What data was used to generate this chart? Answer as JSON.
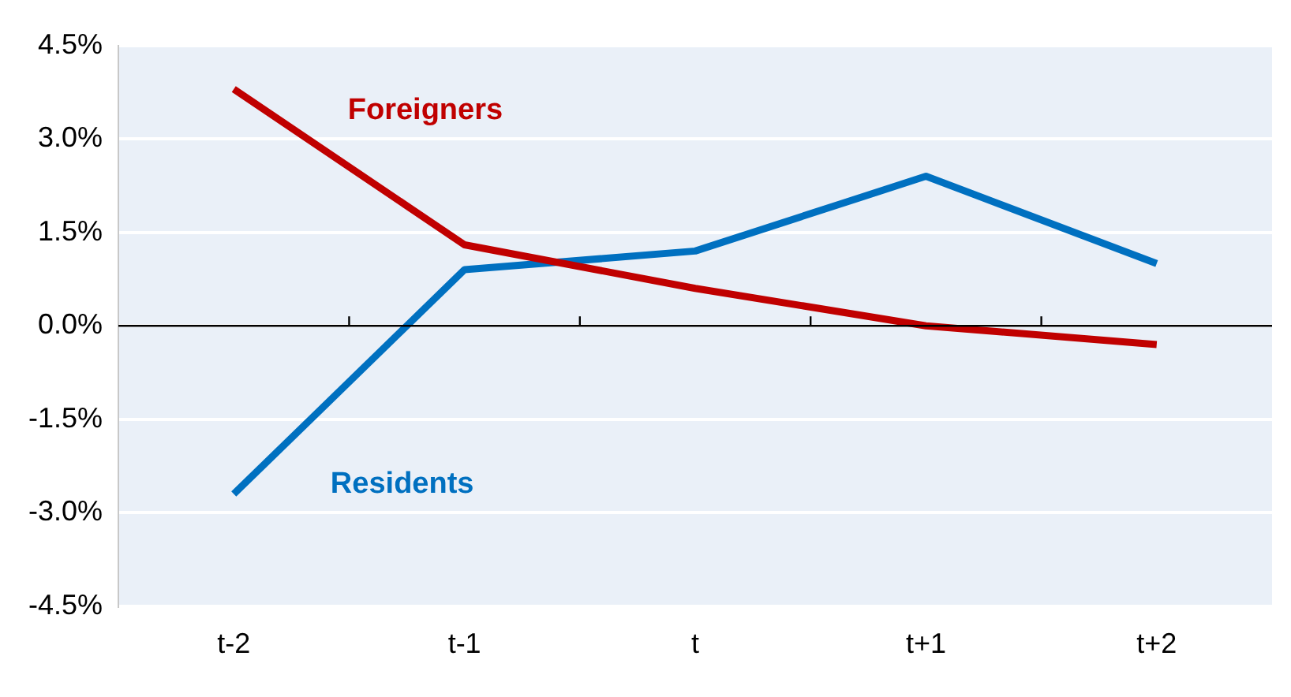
{
  "chart_data": {
    "type": "line",
    "categories": [
      "t-2",
      "t-1",
      "t",
      "t+1",
      "t+2"
    ],
    "series": [
      {
        "name": "Foreigners",
        "color": "#c00000",
        "values": [
          3.8,
          1.3,
          0.6,
          0.0,
          -0.3
        ]
      },
      {
        "name": "Residents",
        "color": "#0070c0",
        "values": [
          -2.7,
          0.9,
          1.2,
          2.4,
          1.0
        ]
      }
    ],
    "ylim": [
      -4.5,
      4.5
    ],
    "yticks": [
      {
        "value": -4.5,
        "label": "-4.5%"
      },
      {
        "value": -3,
        "label": "-3.0%"
      },
      {
        "value": -1.5,
        "label": "-1.5%"
      },
      {
        "value": 0,
        "label": "0.0%"
      },
      {
        "value": 1.5,
        "label": "1.5%"
      },
      {
        "value": 3,
        "label": "3.0%"
      },
      {
        "value": 4.5,
        "label": "4.5%"
      }
    ],
    "grid": "y",
    "legend": false,
    "marker": "none",
    "line_style": "solid"
  }
}
